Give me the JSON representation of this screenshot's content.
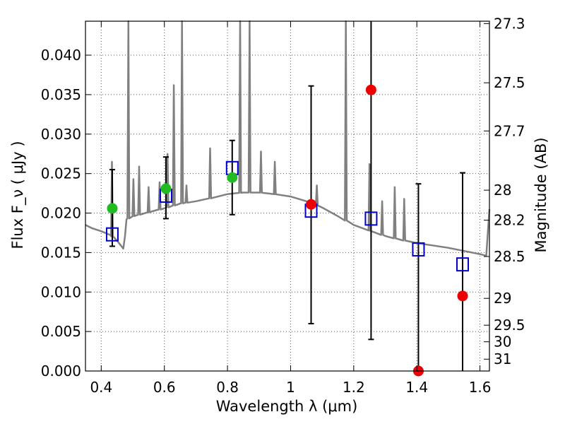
{
  "chart_data": {
    "type": "scatter",
    "xlabel": "Wavelength  λ (μm)",
    "ylabel": "Flux  F_ν ( μJy )",
    "ylabel_right": "Magnitude (AB)",
    "xlim": [
      0.35,
      1.63
    ],
    "ylim": [
      0.0,
      0.0443
    ],
    "grid": true,
    "x_ticks": [
      0.4,
      0.6,
      0.8,
      1.0,
      1.2,
      1.4,
      1.6
    ],
    "x_tick_labels": [
      "0.4",
      "0.6",
      "0.8",
      "1",
      "1.2",
      "1.4",
      "1.6"
    ],
    "y_ticks": [
      0.0,
      0.005,
      0.01,
      0.015,
      0.02,
      0.025,
      0.03,
      0.035,
      0.04
    ],
    "y_tick_labels": [
      "0.000",
      "0.005",
      "0.010",
      "0.015",
      "0.020",
      "0.025",
      "0.030",
      "0.035",
      "0.040"
    ],
    "mag_ticks": [
      {
        "label": "27.3",
        "flux": 0.044
      },
      {
        "label": "27.5",
        "flux": 0.0365
      },
      {
        "label": "27.7",
        "flux": 0.0304
      },
      {
        "label": "28",
        "flux": 0.0229
      },
      {
        "label": "28.2",
        "flux": 0.0191
      },
      {
        "label": "28.5",
        "flux": 0.0145
      },
      {
        "label": "29",
        "flux": 0.0092
      },
      {
        "label": "29.5",
        "flux": 0.0058
      },
      {
        "label": "30",
        "flux": 0.0037
      },
      {
        "label": "31",
        "flux": 0.0015
      }
    ],
    "colors": {
      "template": "#808080",
      "model_flux": "#0000cc",
      "detected": "#22bb22",
      "low_sn": "#ee0000",
      "errorbar": "#000000",
      "grid": "#555555"
    },
    "series": [
      {
        "kind": "model_squares",
        "x": [
          0.435,
          0.605,
          0.815,
          1.065,
          1.255,
          1.405,
          1.545
        ],
        "y": [
          0.0173,
          0.0222,
          0.0257,
          0.0203,
          0.0193,
          0.0154,
          0.0135
        ]
      },
      {
        "kind": "green_points",
        "x": [
          0.435,
          0.605,
          0.815
        ],
        "y": [
          0.0206,
          0.0231,
          0.0245
        ]
      },
      {
        "kind": "red_points",
        "x": [
          1.065,
          1.255,
          1.405,
          1.545
        ],
        "y": [
          0.0211,
          0.0356,
          0.0,
          0.0095
        ]
      },
      {
        "kind": "errorbars",
        "x": [
          0.435,
          0.605,
          0.815,
          1.065,
          1.255,
          1.405,
          1.545
        ],
        "ylow": [
          0.0158,
          0.0193,
          0.0198,
          0.006,
          0.004,
          0.0,
          0.0
        ],
        "yhigh": [
          0.0255,
          0.0271,
          0.0292,
          0.0361,
          0.0443,
          0.0237,
          0.0251
        ]
      },
      {
        "kind": "template_continuum",
        "x": [
          0.35,
          0.37,
          0.4,
          0.43,
          0.45,
          0.46,
          0.47,
          0.475,
          0.48,
          0.5,
          0.55,
          0.6,
          0.65,
          0.7,
          0.75,
          0.8,
          0.85,
          0.9,
          0.95,
          1.0,
          1.05,
          1.1,
          1.15,
          1.2,
          1.25,
          1.3,
          1.35,
          1.4,
          1.45,
          1.5,
          1.55,
          1.6,
          1.62,
          1.63
        ],
        "y": [
          0.0185,
          0.0181,
          0.0177,
          0.0172,
          0.0165,
          0.016,
          0.0155,
          0.017,
          0.0192,
          0.0196,
          0.0201,
          0.0206,
          0.0212,
          0.0215,
          0.0219,
          0.0224,
          0.0226,
          0.0226,
          0.0224,
          0.0221,
          0.0215,
          0.0207,
          0.0196,
          0.0185,
          0.0178,
          0.0171,
          0.0166,
          0.0162,
          0.0159,
          0.0156,
          0.0152,
          0.0148,
          0.0146,
          0.0205
        ]
      },
      {
        "kind": "template_lines",
        "x": [
          0.434,
          0.486,
          0.502,
          0.52,
          0.55,
          0.585,
          0.61,
          0.63,
          0.656,
          0.67,
          0.745,
          0.84,
          0.87,
          0.906,
          0.95,
          1.083,
          1.175,
          1.25,
          1.29,
          1.33,
          1.36
        ],
        "y": [
          0.0265,
          0.0443,
          0.0243,
          0.0259,
          0.0233,
          0.0239,
          0.0275,
          0.0362,
          0.0443,
          0.0235,
          0.0282,
          0.0443,
          0.0443,
          0.0278,
          0.0265,
          0.0235,
          0.0443,
          0.0262,
          0.0215,
          0.0233,
          0.0218
        ]
      }
    ]
  }
}
